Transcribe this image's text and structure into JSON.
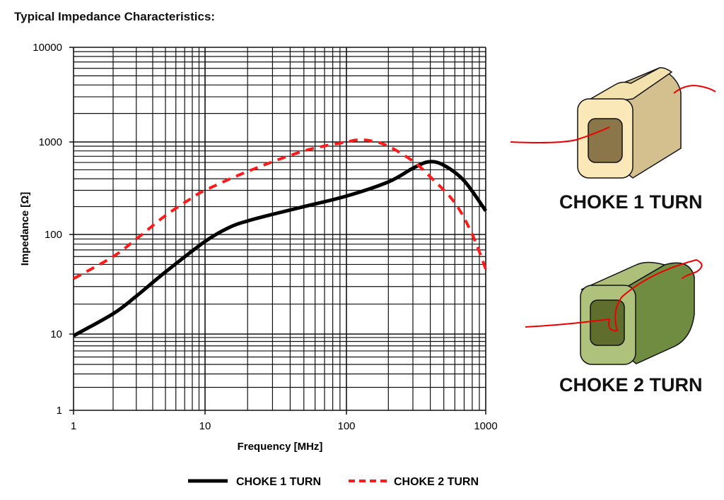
{
  "chart_data": {
    "type": "line",
    "title": "Typical Impedance Characteristics:",
    "xlabel": "Frequency [MHz]",
    "ylabel": "Impedance [Ω]",
    "x_scale": "log",
    "y_scale": "log",
    "xlim": [
      1,
      1000
    ],
    "ylim": [
      1,
      10000
    ],
    "x_ticks": [
      "1",
      "10",
      "100",
      "1000"
    ],
    "y_ticks": [
      "1",
      "10",
      "100",
      "1000",
      "10000"
    ],
    "grid": true,
    "legend": "bottom",
    "series": [
      {
        "name": "CHOKE 1 TURN",
        "color": "#000000",
        "style": "solid",
        "x": [
          1,
          2,
          3,
          5,
          10,
          15,
          20,
          30,
          50,
          100,
          200,
          300,
          390,
          500,
          700,
          1000
        ],
        "y": [
          9.5,
          16,
          24,
          42,
          85,
          120,
          140,
          165,
          200,
          260,
          370,
          520,
          610,
          560,
          380,
          180
        ]
      },
      {
        "name": "CHOKE 2 TURN",
        "color": "#ff1a1a",
        "style": "dashed",
        "x": [
          1,
          2,
          3,
          5,
          8,
          10,
          20,
          50,
          100,
          120,
          150,
          200,
          300,
          400,
          600,
          800,
          1000
        ],
        "y": [
          36,
          60,
          90,
          160,
          250,
          300,
          480,
          800,
          1000,
          1050,
          1030,
          900,
          620,
          420,
          220,
          100,
          45
        ]
      }
    ]
  },
  "illustrations": {
    "choke1_label": "CHOKE 1 TURN",
    "choke2_label": "CHOKE 2 TURN"
  }
}
